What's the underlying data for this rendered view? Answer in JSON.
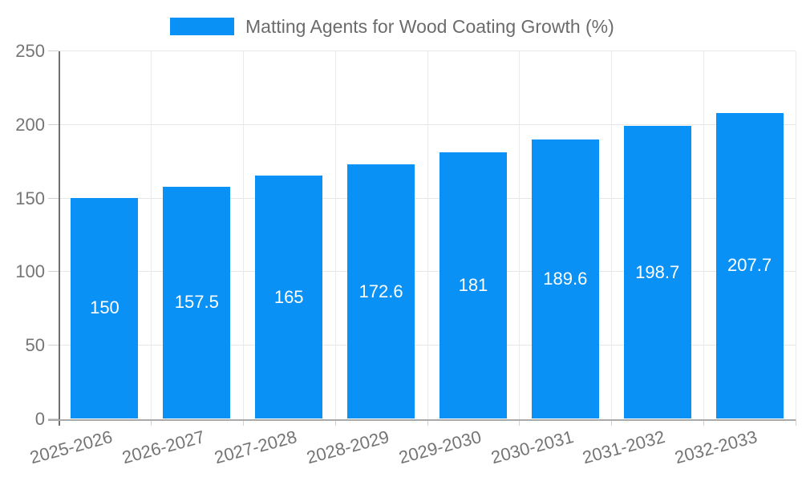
{
  "chart_data": {
    "type": "bar",
    "title": "Matting Agents for Wood Coating Growth (%)",
    "categories": [
      "2025-2026",
      "2026-2027",
      "2027-2028",
      "2028-2029",
      "2029-2030",
      "2030-2031",
      "2031-2032",
      "2032-2033"
    ],
    "values": [
      150,
      157.5,
      165,
      172.6,
      181,
      189.6,
      198.7,
      207.7
    ],
    "xlabel": "",
    "ylabel": "",
    "ylim": [
      0,
      250
    ],
    "yticks": [
      0,
      50,
      100,
      150,
      200,
      250
    ],
    "grid": true,
    "legend_position": "top",
    "x_tick_rotation": -15
  },
  "legend": {
    "label": "Matting Agents for Wood Coating Growth (%)"
  },
  "colors": {
    "bar": "#0a91f5",
    "value_label": "#ffffff",
    "axis_text": "#757575",
    "legend_text": "#6b6b6b",
    "grid_h": "#e6e6e6",
    "grid_v": "#ebebeb",
    "tick": "#d0d0d0",
    "axis_line": "#6e6e6e",
    "baseline": "#a9a9a9",
    "background": "#ffffff"
  }
}
